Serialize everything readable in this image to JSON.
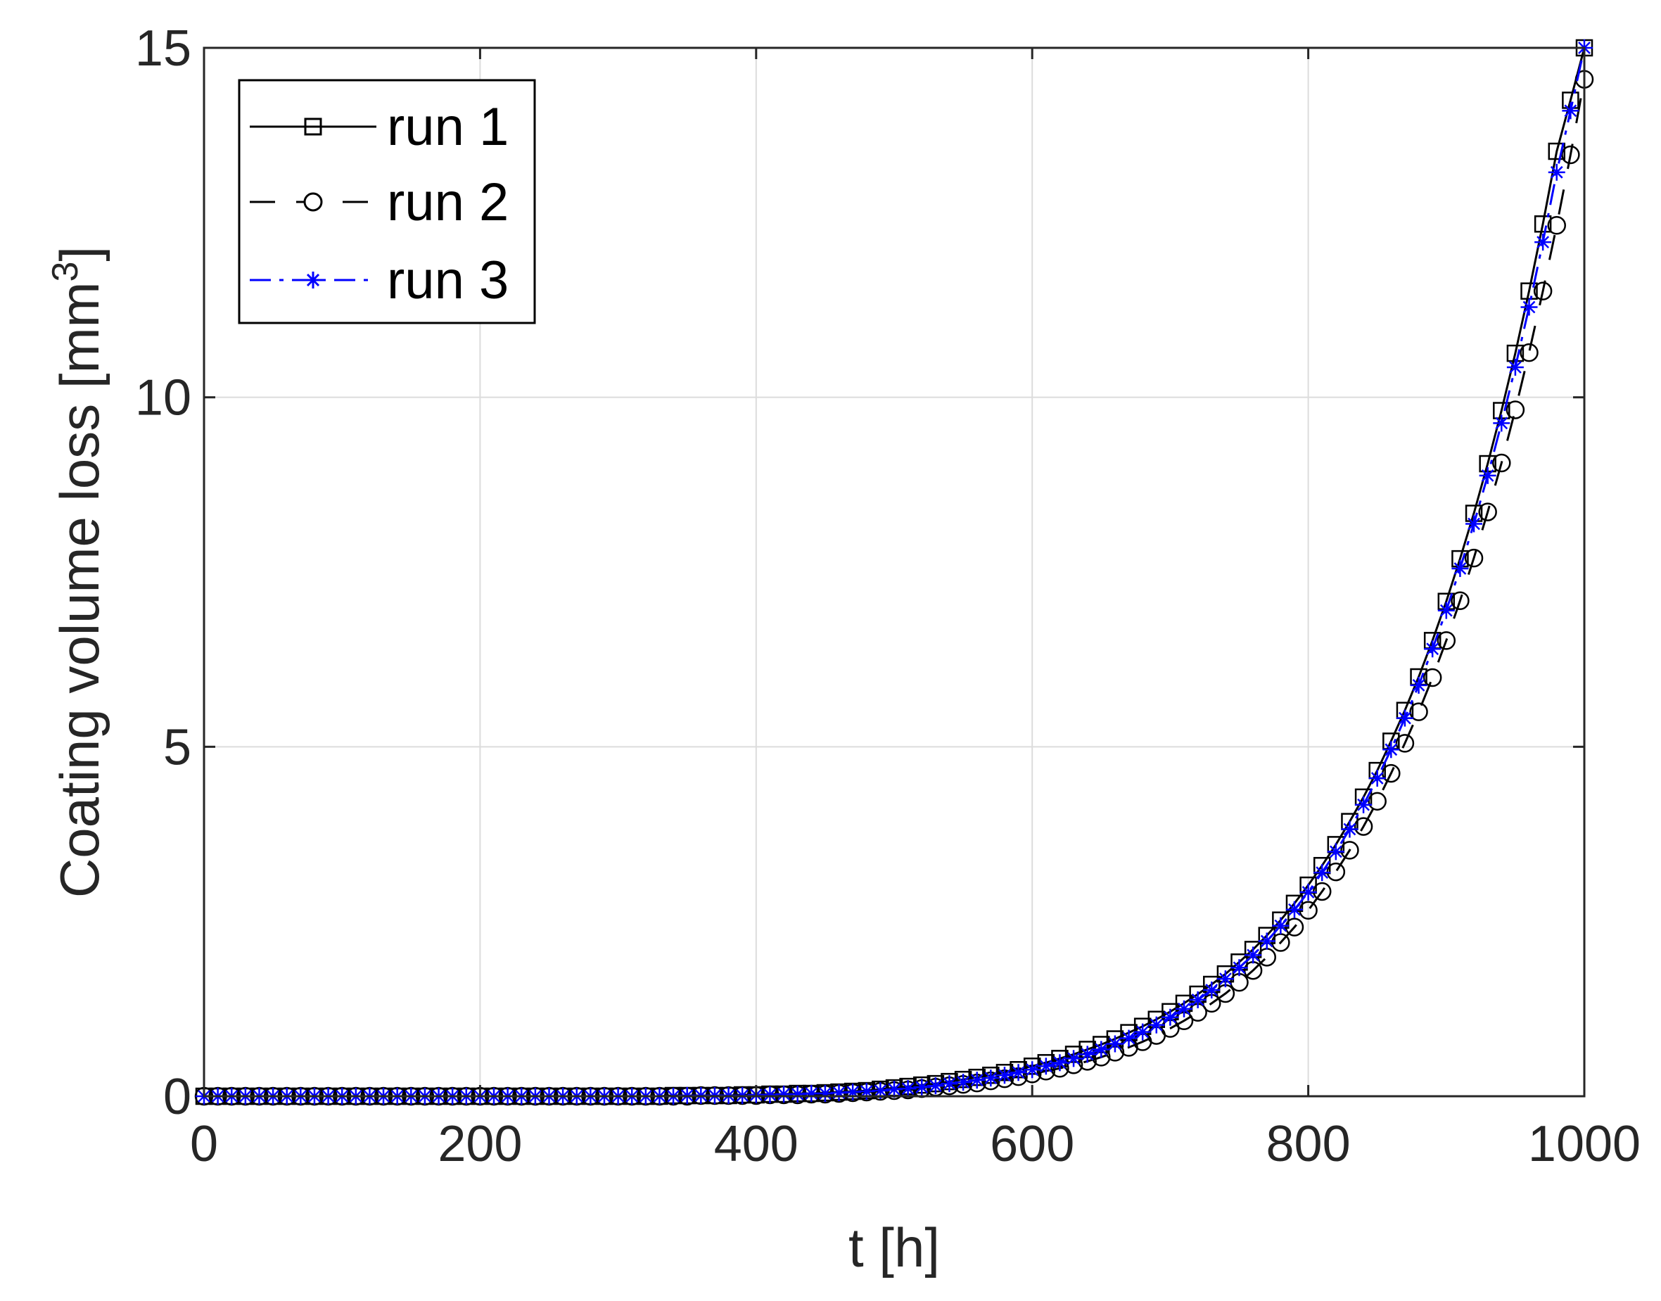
{
  "chart_data": {
    "type": "line",
    "xlabel": "t [h]",
    "ylabel": {
      "text": "Coating volume loss [mm",
      "superscript": "3",
      "suffix": "]"
    },
    "xlim": [
      0,
      1000
    ],
    "ylim": [
      0,
      15
    ],
    "x_ticks": [
      "0",
      "200",
      "400",
      "600",
      "800",
      "1000"
    ],
    "y_ticks": [
      "0",
      "5",
      "10",
      "15"
    ],
    "grid": true,
    "legend_position": "top-left",
    "x": [
      0,
      10,
      20,
      30,
      40,
      50,
      60,
      70,
      80,
      90,
      100,
      110,
      120,
      130,
      140,
      150,
      160,
      170,
      180,
      190,
      200,
      210,
      220,
      230,
      240,
      250,
      260,
      270,
      280,
      290,
      300,
      310,
      320,
      330,
      340,
      350,
      360,
      370,
      380,
      390,
      400,
      410,
      420,
      430,
      440,
      450,
      460,
      470,
      480,
      490,
      500,
      510,
      520,
      530,
      540,
      550,
      560,
      570,
      580,
      590,
      600,
      610,
      620,
      630,
      640,
      650,
      660,
      670,
      680,
      690,
      700,
      710,
      720,
      730,
      740,
      750,
      760,
      770,
      780,
      790,
      800,
      810,
      820,
      830,
      840,
      850,
      860,
      870,
      880,
      890,
      900,
      910,
      920,
      930,
      940,
      950,
      960,
      970,
      980,
      990,
      1000
    ],
    "series": [
      {
        "name": "run 1",
        "color": "#000000",
        "line_style": "solid",
        "marker": "square",
        "values": [
          0,
          0,
          0,
          0,
          0,
          0,
          0,
          0,
          0,
          0,
          0,
          0,
          0,
          0,
          0,
          0,
          0,
          0,
          0,
          0,
          0,
          0,
          0,
          0,
          0,
          0,
          0,
          0,
          0,
          0,
          0,
          0,
          0,
          0,
          0.01,
          0.01,
          0.01,
          0.01,
          0.01,
          0.02,
          0.02,
          0.03,
          0.03,
          0.04,
          0.04,
          0.05,
          0.06,
          0.07,
          0.08,
          0.1,
          0.12,
          0.14,
          0.16,
          0.18,
          0.21,
          0.24,
          0.27,
          0.3,
          0.34,
          0.38,
          0.43,
          0.48,
          0.54,
          0.6,
          0.67,
          0.74,
          0.82,
          0.91,
          1.0,
          1.1,
          1.21,
          1.33,
          1.46,
          1.6,
          1.75,
          1.92,
          2.1,
          2.3,
          2.52,
          2.76,
          3.02,
          3.3,
          3.6,
          3.93,
          4.28,
          4.66,
          5.08,
          5.52,
          6.0,
          6.52,
          7.08,
          7.69,
          8.34,
          9.05,
          9.81,
          10.63,
          11.52,
          12.48,
          13.52,
          14.25,
          15.0
        ]
      },
      {
        "name": "run 2",
        "color": "#000000",
        "line_style": "dashed",
        "marker": "circle",
        "values": [
          0,
          0,
          0,
          0,
          0,
          0,
          0,
          0,
          0,
          0,
          0,
          0,
          0,
          0,
          0,
          0,
          0,
          0,
          0,
          0,
          0,
          0,
          0,
          0,
          0,
          0,
          0,
          0,
          0,
          0,
          0,
          0,
          0,
          0,
          0,
          0,
          0.01,
          0.01,
          0.01,
          0.01,
          0.01,
          0.02,
          0.02,
          0.02,
          0.03,
          0.03,
          0.04,
          0.05,
          0.06,
          0.07,
          0.08,
          0.09,
          0.11,
          0.13,
          0.15,
          0.17,
          0.19,
          0.22,
          0.25,
          0.28,
          0.32,
          0.36,
          0.4,
          0.45,
          0.5,
          0.56,
          0.63,
          0.7,
          0.78,
          0.87,
          0.97,
          1.08,
          1.2,
          1.33,
          1.47,
          1.63,
          1.8,
          1.99,
          2.2,
          2.42,
          2.66,
          2.93,
          3.21,
          3.52,
          3.86,
          4.22,
          4.62,
          5.05,
          5.5,
          5.99,
          6.52,
          7.09,
          7.7,
          8.36,
          9.06,
          9.82,
          10.64,
          11.52,
          12.46,
          13.47,
          14.55
        ]
      },
      {
        "name": "run 3",
        "color": "#0000ff",
        "line_style": "dashdot",
        "marker": "asterisk",
        "values": [
          0,
          0,
          0,
          0,
          0,
          0,
          0,
          0,
          0,
          0,
          0,
          0,
          0,
          0,
          0,
          0,
          0,
          0,
          0,
          0,
          0,
          0,
          0,
          0,
          0,
          0,
          0,
          0,
          0,
          0,
          0,
          0,
          0,
          0,
          0,
          0.01,
          0.01,
          0.01,
          0.01,
          0.01,
          0.02,
          0.02,
          0.03,
          0.03,
          0.04,
          0.04,
          0.05,
          0.06,
          0.07,
          0.08,
          0.1,
          0.11,
          0.13,
          0.15,
          0.18,
          0.2,
          0.23,
          0.26,
          0.3,
          0.34,
          0.38,
          0.43,
          0.48,
          0.54,
          0.6,
          0.67,
          0.75,
          0.83,
          0.92,
          1.02,
          1.13,
          1.25,
          1.38,
          1.52,
          1.68,
          1.84,
          2.02,
          2.22,
          2.44,
          2.67,
          2.92,
          3.2,
          3.5,
          3.82,
          4.17,
          4.55,
          4.96,
          5.41,
          5.88,
          6.4,
          6.95,
          7.55,
          8.19,
          8.88,
          9.63,
          10.43,
          11.29,
          12.22,
          13.22,
          14.1,
          15.0
        ]
      }
    ]
  }
}
